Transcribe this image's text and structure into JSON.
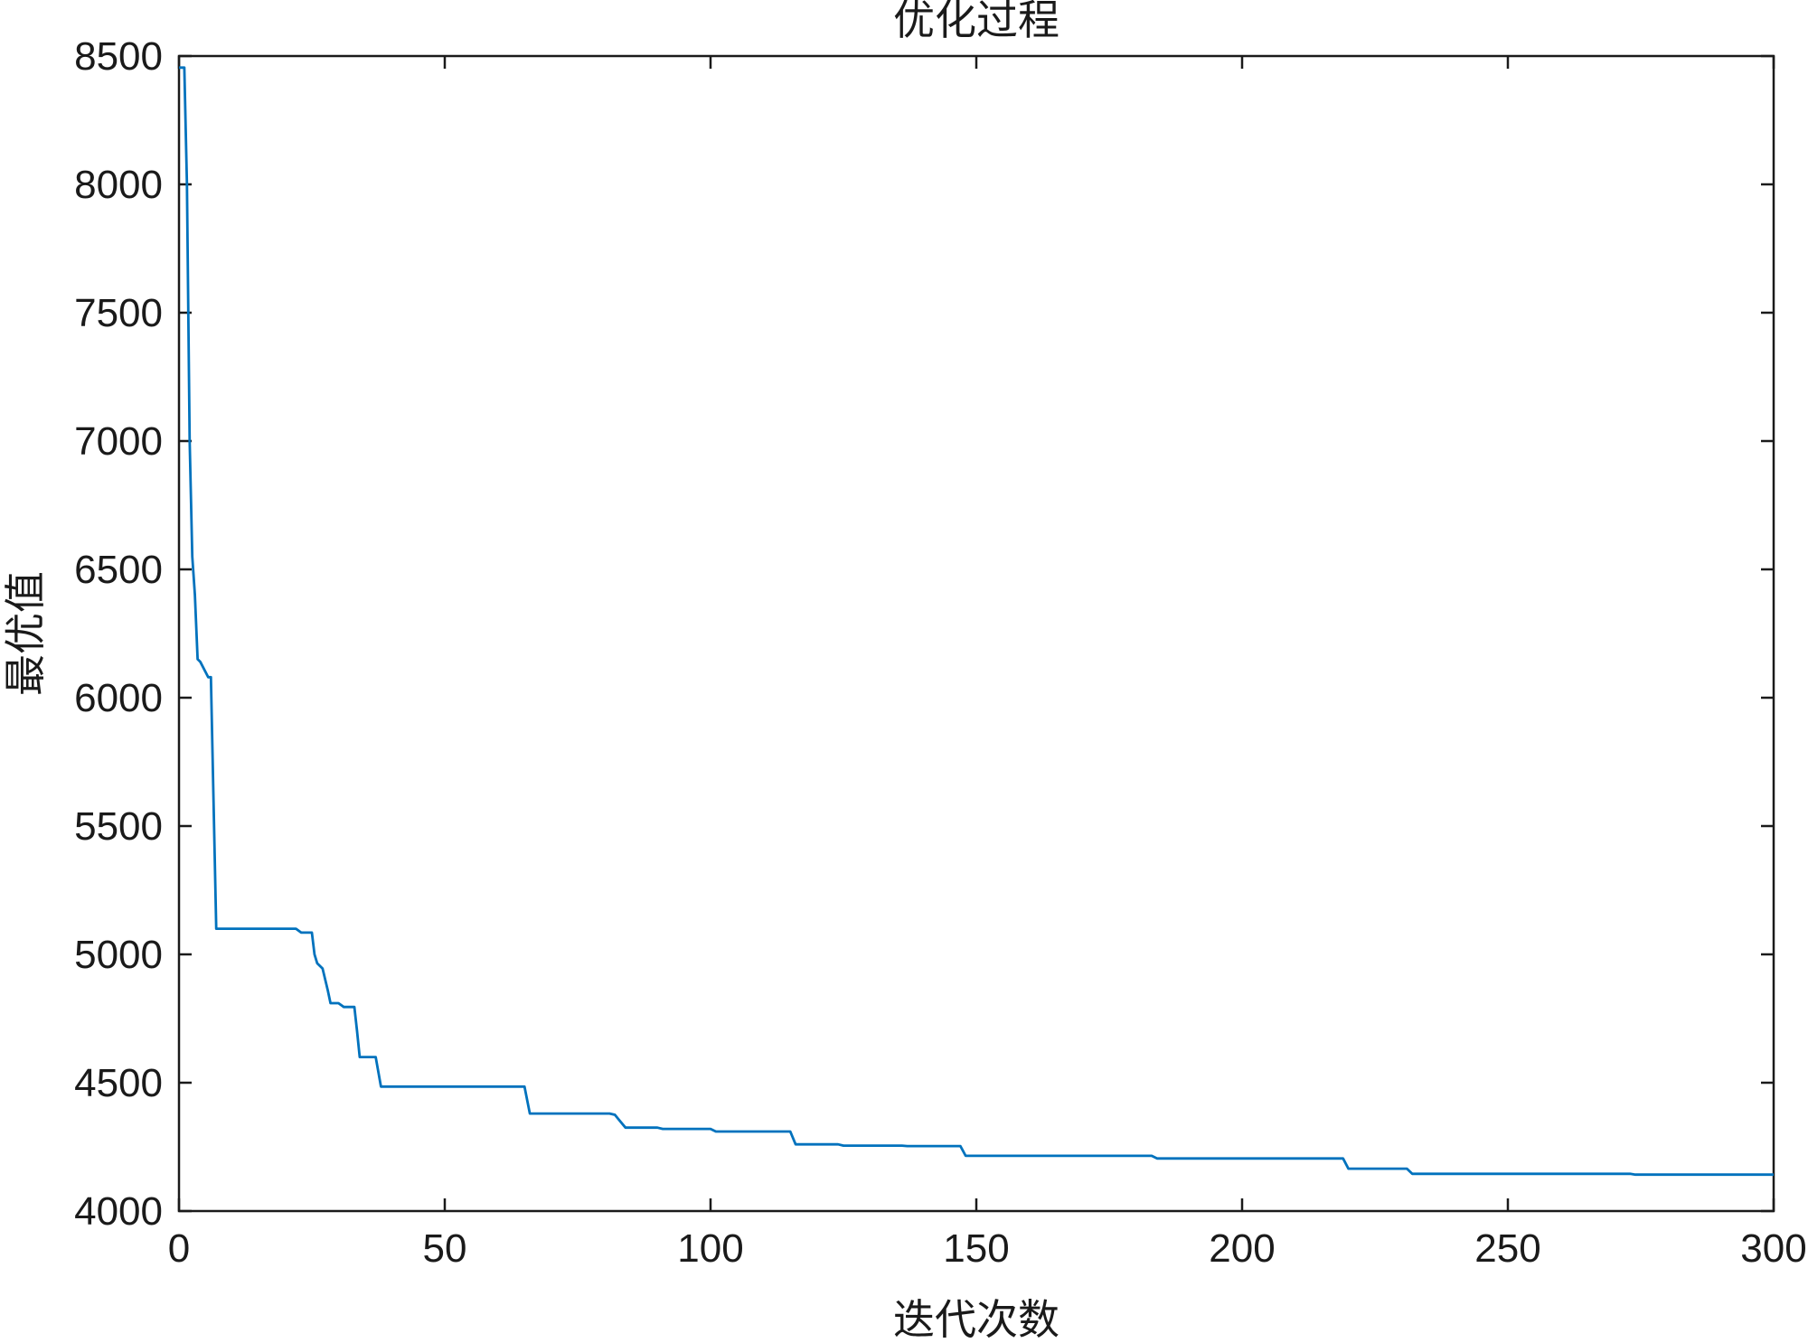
{
  "chart_data": {
    "type": "line",
    "title": "优化过程",
    "xlabel": "迭代次数",
    "ylabel": "最优值",
    "xlim": [
      0,
      300
    ],
    "ylim": [
      4000,
      8500
    ],
    "xticks": [
      0,
      50,
      100,
      150,
      200,
      250,
      300
    ],
    "yticks": [
      4000,
      4500,
      5000,
      5500,
      6000,
      6500,
      7000,
      7500,
      8000,
      8500
    ],
    "grid": false,
    "series_color": "#0072BD",
    "series": [
      {
        "x": [
          0,
          1,
          1.5,
          2,
          2.5,
          3,
          3.5,
          4,
          5,
          5.5,
          6,
          6.5,
          7,
          7.5,
          22,
          23,
          24,
          25,
          25.5,
          26,
          27,
          28,
          28.5,
          30,
          31,
          32,
          33,
          33.5,
          34,
          35,
          37,
          38,
          65,
          66,
          81,
          82,
          83,
          84,
          90,
          91,
          100,
          101,
          115,
          116,
          124,
          125,
          136,
          137,
          147,
          148,
          183,
          184,
          219,
          220,
          231,
          232,
          273,
          274,
          300
        ],
        "y": [
          8455,
          8455,
          8000,
          7000,
          6550,
          6400,
          6150,
          6140,
          6100,
          6080,
          6080,
          5600,
          5100,
          5100,
          5100,
          5085,
          5085,
          5085,
          5000,
          4965,
          4945,
          4860,
          4810,
          4810,
          4795,
          4795,
          4795,
          4700,
          4600,
          4600,
          4600,
          4485,
          4485,
          4380,
          4380,
          4375,
          4350,
          4325,
          4325,
          4320,
          4320,
          4310,
          4310,
          4260,
          4260,
          4255,
          4255,
          4253,
          4253,
          4215,
          4215,
          4205,
          4205,
          4165,
          4165,
          4145,
          4145,
          4142,
          4142
        ]
      }
    ]
  }
}
